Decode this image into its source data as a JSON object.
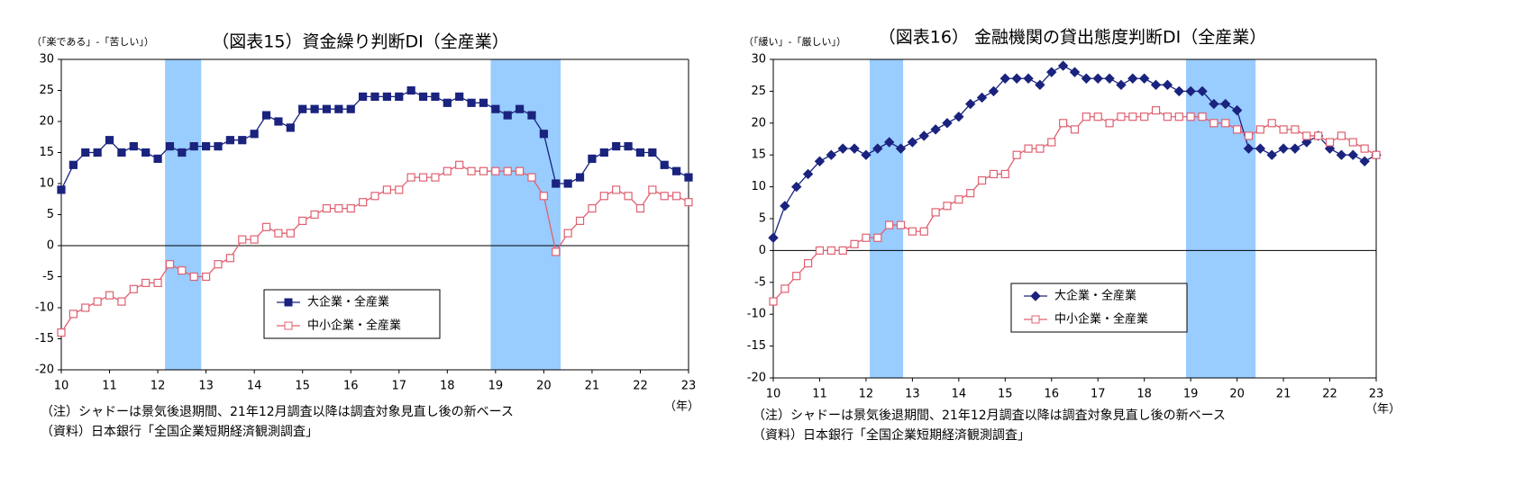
{
  "chart_data": [
    {
      "type": "line",
      "title": "（図表15）資金繰り判断DI（全産業）",
      "y_label": "（「楽である」-「苦しい」）",
      "x_unit": "（年）",
      "notes": [
        "（注）シャドーは景気後退期間、21年12月調査以降は調査対象見直し後の新ベース",
        "（資料）日本銀行「全国企業短期経済観測調査」"
      ],
      "xlim": [
        10,
        23
      ],
      "xticks": [
        10,
        11,
        12,
        13,
        14,
        15,
        16,
        17,
        18,
        19,
        20,
        21,
        22,
        23
      ],
      "ylim": [
        -20,
        30
      ],
      "yticks": [
        -20,
        -15,
        -10,
        -5,
        0,
        5,
        10,
        15,
        20,
        25,
        30
      ],
      "shading": [
        [
          12.15,
          12.9
        ],
        [
          18.9,
          20.35
        ]
      ],
      "shading_color": "#99ccff",
      "legend": "lower-center",
      "x": [
        10,
        10.25,
        10.5,
        10.75,
        11,
        11.25,
        11.5,
        11.75,
        12,
        12.25,
        12.5,
        12.75,
        13,
        13.25,
        13.5,
        13.75,
        14,
        14.25,
        14.5,
        14.75,
        15,
        15.25,
        15.5,
        15.75,
        16,
        16.25,
        16.5,
        16.75,
        17,
        17.25,
        17.5,
        17.75,
        18,
        18.25,
        18.5,
        18.75,
        19,
        19.25,
        19.5,
        19.75,
        20,
        20.25,
        20.5,
        20.75,
        21,
        21.25,
        21.5,
        21.75,
        22,
        22.25,
        22.5,
        22.75,
        23
      ],
      "series": [
        {
          "name": "大企業・全産業",
          "color": "#1a237e",
          "marker": "square",
          "filled": true,
          "values": [
            9,
            13,
            15,
            15,
            17,
            15,
            16,
            15,
            14,
            16,
            15,
            16,
            16,
            16,
            17,
            17,
            18,
            21,
            20,
            19,
            22,
            22,
            22,
            22,
            22,
            24,
            24,
            24,
            24,
            25,
            24,
            24,
            23,
            24,
            23,
            23,
            22,
            21,
            22,
            21,
            18,
            10,
            10,
            11,
            14,
            15,
            16,
            16,
            15,
            15,
            13,
            12,
            11
          ]
        },
        {
          "name": "中小企業・全産業",
          "color": "#e06070",
          "marker": "square",
          "filled": false,
          "values": [
            -14,
            -11,
            -10,
            -9,
            -8,
            -9,
            -7,
            -6,
            -6,
            -3,
            -4,
            -5,
            -5,
            -3,
            -2,
            1,
            1,
            3,
            2,
            2,
            4,
            5,
            6,
            6,
            6,
            7,
            8,
            9,
            9,
            11,
            11,
            11,
            12,
            13,
            12,
            12,
            12,
            12,
            12,
            11,
            8,
            -1,
            2,
            4,
            6,
            8,
            9,
            8,
            6,
            9,
            8,
            8,
            7
          ]
        }
      ]
    },
    {
      "type": "line",
      "title": "（図表16） 金融機関の貸出態度判断DI（全産業）",
      "y_label": "（「緩い」-「厳しい」）",
      "x_unit": "（年）",
      "notes": [
        "（注）シャドーは景気後退期間、21年12月調査以降は調査対象見直し後の新ベース",
        "（資料）日本銀行「全国企業短期経済観測調査」"
      ],
      "xlim": [
        10,
        23
      ],
      "xticks": [
        10,
        11,
        12,
        13,
        14,
        15,
        16,
        17,
        18,
        19,
        20,
        21,
        22,
        23
      ],
      "ylim": [
        -20,
        30
      ],
      "yticks": [
        -20,
        -15,
        -10,
        -5,
        0,
        5,
        10,
        15,
        20,
        25,
        30
      ],
      "shading": [
        [
          12.08,
          12.8
        ],
        [
          18.9,
          20.4
        ]
      ],
      "shading_color": "#99ccff",
      "legend": "lower-center",
      "x": [
        10,
        10.25,
        10.5,
        10.75,
        11,
        11.25,
        11.5,
        11.75,
        12,
        12.25,
        12.5,
        12.75,
        13,
        13.25,
        13.5,
        13.75,
        14,
        14.25,
        14.5,
        14.75,
        15,
        15.25,
        15.5,
        15.75,
        16,
        16.25,
        16.5,
        16.75,
        17,
        17.25,
        17.5,
        17.75,
        18,
        18.25,
        18.5,
        18.75,
        19,
        19.25,
        19.5,
        19.75,
        20,
        20.25,
        20.5,
        20.75,
        21,
        21.25,
        21.5,
        21.75,
        22,
        22.25,
        22.5,
        22.75,
        23
      ],
      "series": [
        {
          "name": "大企業・全産業",
          "color": "#1a237e",
          "marker": "diamond",
          "filled": true,
          "values": [
            2,
            7,
            10,
            12,
            14,
            15,
            16,
            16,
            15,
            16,
            17,
            16,
            17,
            18,
            19,
            20,
            21,
            23,
            24,
            25,
            27,
            27,
            27,
            26,
            28,
            29,
            28,
            27,
            27,
            27,
            26,
            27,
            27,
            26,
            26,
            25,
            25,
            25,
            23,
            23,
            22,
            16,
            16,
            15,
            16,
            16,
            17,
            18,
            16,
            15,
            15,
            14,
            15
          ]
        },
        {
          "name": "中小企業・全産業",
          "color": "#e06070",
          "marker": "square",
          "filled": false,
          "values": [
            -8,
            -6,
            -4,
            -2,
            0,
            0,
            0,
            1,
            2,
            2,
            4,
            4,
            3,
            3,
            6,
            7,
            8,
            9,
            11,
            12,
            12,
            15,
            16,
            16,
            17,
            20,
            19,
            21,
            21,
            20,
            21,
            21,
            21,
            22,
            21,
            21,
            21,
            21,
            20,
            20,
            19,
            18,
            19,
            20,
            19,
            19,
            18,
            18,
            17,
            18,
            17,
            16,
            15
          ]
        }
      ]
    }
  ]
}
